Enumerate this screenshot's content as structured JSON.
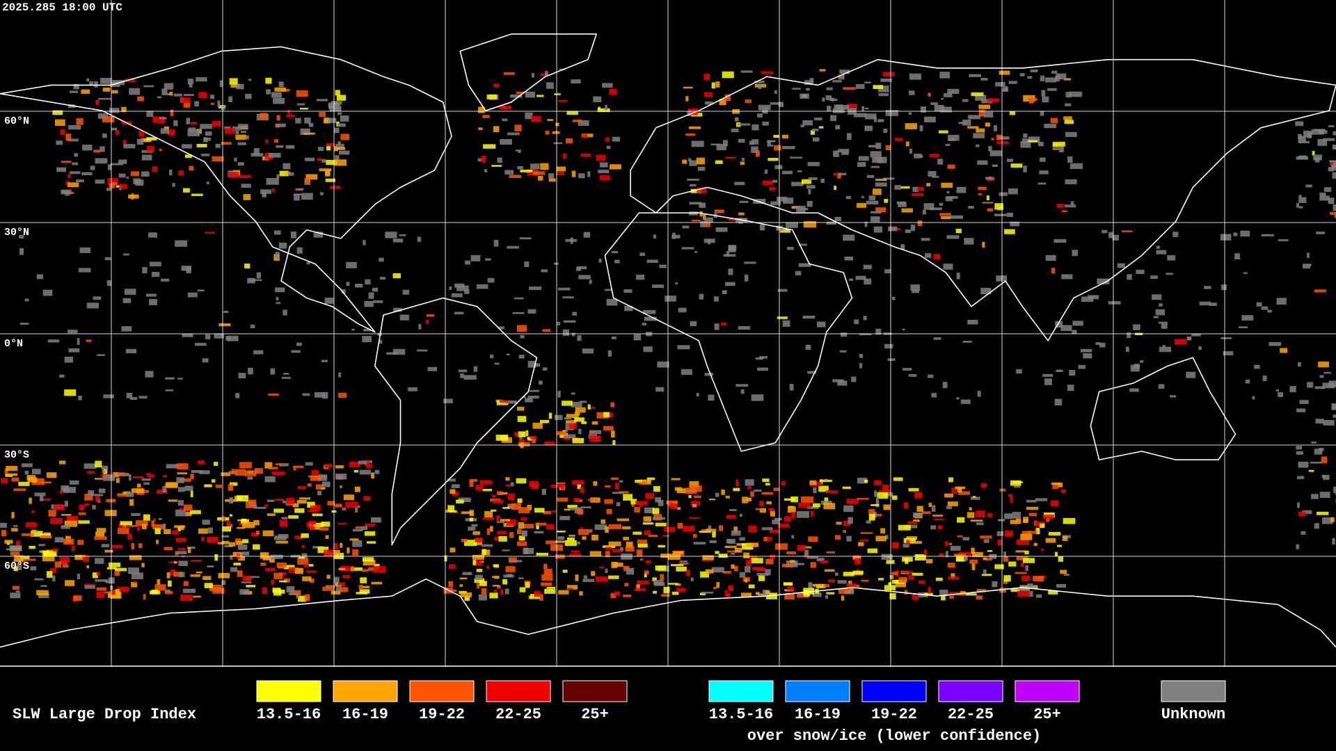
{
  "header": {
    "timestamp": "2025.285 18:00 UTC"
  },
  "grid_labels": [
    "60°N",
    "30°N",
    "0°N",
    "30°S",
    "60°S"
  ],
  "legend": {
    "title": "SLW Large Drop Index",
    "groups": [
      {
        "items": [
          {
            "label": "13.5-16",
            "color": "#ffff00"
          },
          {
            "label": "16-19",
            "color": "#ffa500"
          },
          {
            "label": "19-22",
            "color": "#ff5500"
          },
          {
            "label": "22-25",
            "color": "#ee0000"
          },
          {
            "label": "25+",
            "color": "#640000"
          }
        ]
      },
      {
        "items": [
          {
            "label": "13.5-16",
            "color": "#00ffff"
          },
          {
            "label": "16-19",
            "color": "#0080ff"
          },
          {
            "label": "19-22",
            "color": "#0000ff"
          },
          {
            "label": "22-25",
            "color": "#7a00ff"
          },
          {
            "label": "25+",
            "color": "#c000ff"
          }
        ],
        "caption": "over snow/ice (lower confidence)"
      },
      {
        "items": [
          {
            "label": "Unknown",
            "color": "#808080"
          }
        ]
      }
    ]
  }
}
